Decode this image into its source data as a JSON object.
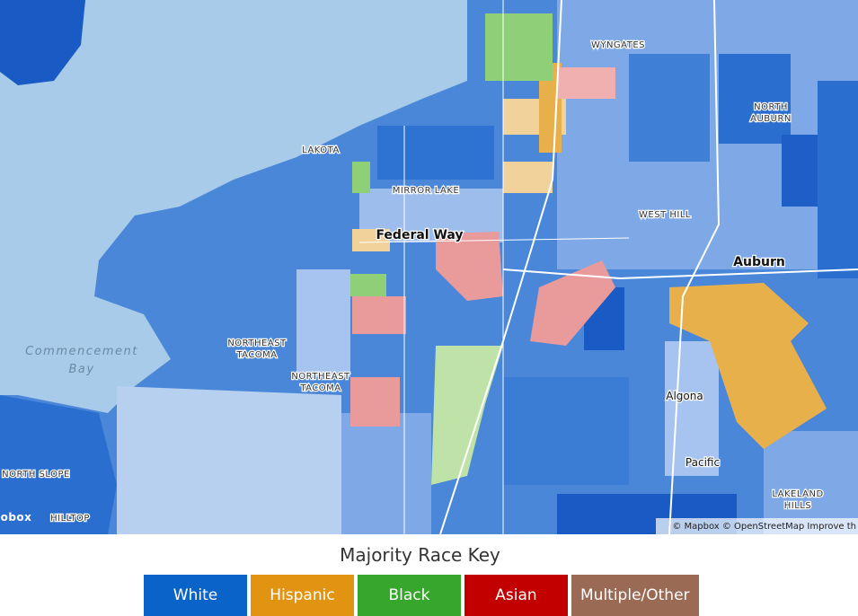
{
  "map": {
    "labels": [
      {
        "lines": [
          "WYNGATES"
        ]
      },
      {
        "lines": [
          "NORTH",
          "AUBURN"
        ]
      },
      {
        "lines": [
          "LAKOTA"
        ]
      },
      {
        "lines": [
          "MIRROR LAKE"
        ]
      },
      {
        "lines": [
          "WEST HILL"
        ]
      },
      {
        "lines": [
          "Federal Way"
        ]
      },
      {
        "lines": [
          "Auburn"
        ]
      },
      {
        "lines": [
          "NORTHEAST",
          "TACOMA"
        ]
      },
      {
        "lines": [
          "NORTHEAST",
          "TACOMA"
        ]
      },
      {
        "lines": [
          "Commencement",
          "Bay"
        ]
      },
      {
        "lines": [
          "Algona"
        ]
      },
      {
        "lines": [
          "Pacific"
        ]
      },
      {
        "lines": [
          "NORTH SLOPE"
        ]
      },
      {
        "lines": [
          "HILLTOP"
        ]
      },
      {
        "lines": [
          "LAKELAND",
          "HILLS"
        ]
      },
      {
        "lines": [
          "obox"
        ]
      }
    ],
    "attribution": "© Mapbox © OpenStreetMap  Improve th"
  },
  "legend": {
    "title": "Majority Race Key",
    "items": [
      {
        "label": "White",
        "color": "#0a63c9"
      },
      {
        "label": "Hispanic",
        "color": "#e19412"
      },
      {
        "label": "Black",
        "color": "#36a62c"
      },
      {
        "label": "Asian",
        "color": "#c30000"
      },
      {
        "label": "Multiple/Other",
        "color": "#9a6a55"
      }
    ]
  }
}
